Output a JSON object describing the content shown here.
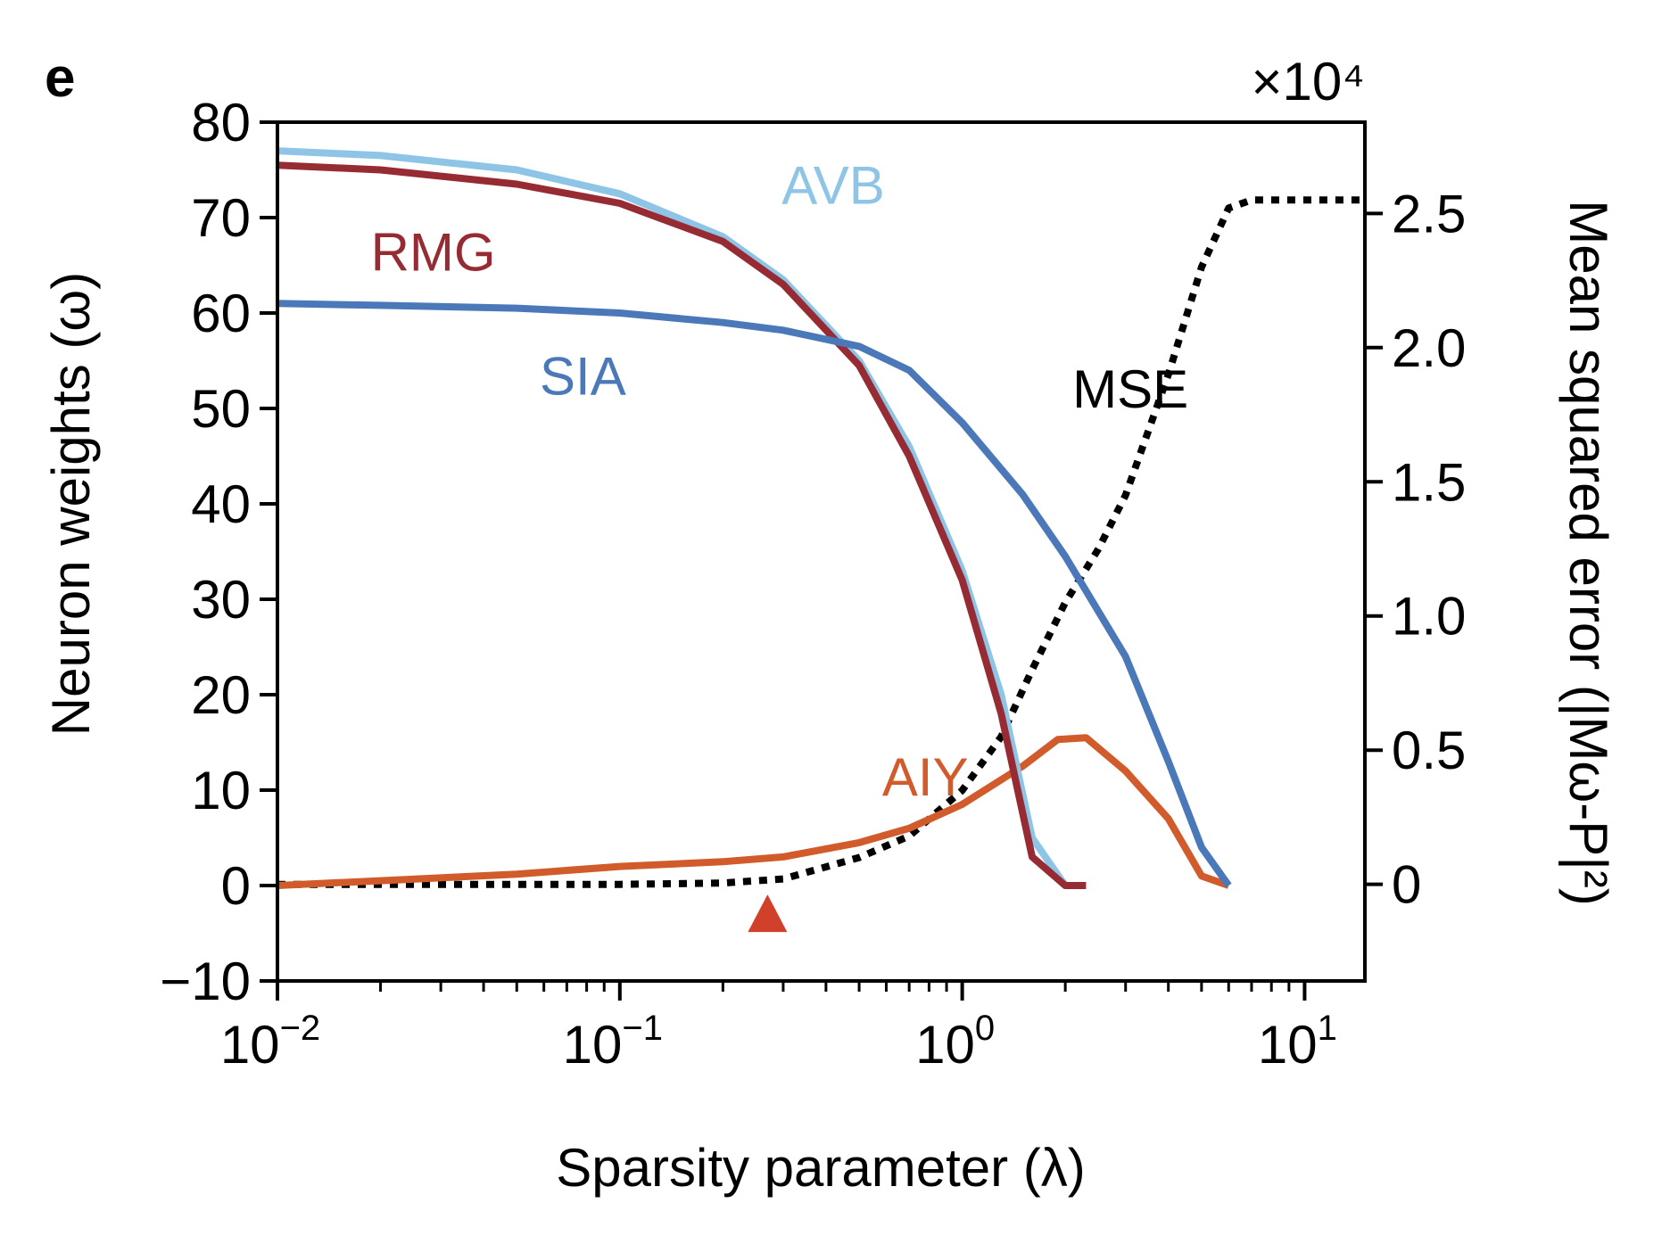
{
  "panel_label": "e",
  "chart_data": {
    "type": "line",
    "title": "",
    "xlabel": "Sparsity parameter (λ)",
    "ylabel": "Neuron weights (ω)",
    "ylabel_right": "Mean squared error (|Mω-P|²)",
    "xscale": "log",
    "xlim": [
      0.01,
      15
    ],
    "ylim": [
      -10,
      80
    ],
    "ylim_right": [
      -0.36,
      2.84
    ],
    "right_axis_multiplier": "×10⁴",
    "x_ticks": [
      {
        "value": 0.01,
        "base": "10",
        "exp": "−2"
      },
      {
        "value": 0.1,
        "base": "10",
        "exp": "−1"
      },
      {
        "value": 1,
        "base": "10",
        "exp": "0"
      },
      {
        "value": 10,
        "base": "10",
        "exp": "1"
      }
    ],
    "y_ticks": [
      {
        "value": -10,
        "label": "−10"
      },
      {
        "value": 0,
        "label": "0"
      },
      {
        "value": 10,
        "label": "10"
      },
      {
        "value": 20,
        "label": "20"
      },
      {
        "value": 30,
        "label": "30"
      },
      {
        "value": 40,
        "label": "40"
      },
      {
        "value": 50,
        "label": "50"
      },
      {
        "value": 60,
        "label": "60"
      },
      {
        "value": 70,
        "label": "70"
      },
      {
        "value": 80,
        "label": "80"
      }
    ],
    "y_ticks_right": [
      {
        "value": 0,
        "label": "0"
      },
      {
        "value": 0.5,
        "label": "0.5"
      },
      {
        "value": 1.0,
        "label": "1.0"
      },
      {
        "value": 1.5,
        "label": "1.5"
      },
      {
        "value": 2.0,
        "label": "2.0"
      },
      {
        "value": 2.5,
        "label": "2.5"
      }
    ],
    "marker": {
      "x": 0.27,
      "y": -3,
      "shape": "triangle",
      "color": "#d0402a"
    },
    "grid": false,
    "legend": "inline labels",
    "series": [
      {
        "name": "AVB",
        "axis": "left",
        "color": "#8ec4e6",
        "style": "solid",
        "label_at": [
          0.42,
          73.5
        ],
        "x": [
          0.01,
          0.02,
          0.05,
          0.1,
          0.2,
          0.3,
          0.5,
          0.7,
          1.0,
          1.3,
          1.6,
          2.0,
          2.3
        ],
        "y": [
          77,
          76.5,
          75,
          72.5,
          68,
          63.5,
          55,
          46,
          33,
          20,
          5,
          -5,
          -10
        ]
      },
      {
        "name": "RMG",
        "axis": "left",
        "color": "#962b33",
        "style": "solid",
        "label_at": [
          0.0285,
          66.5
        ],
        "x": [
          0.01,
          0.02,
          0.05,
          0.1,
          0.2,
          0.3,
          0.5,
          0.7,
          1.0,
          1.3,
          1.6,
          2.0,
          2.3
        ],
        "y": [
          75.5,
          75,
          73.5,
          71.5,
          67.5,
          63,
          54.5,
          45,
          32,
          18,
          3,
          -6,
          -10
        ]
      },
      {
        "name": "SIA",
        "axis": "left",
        "color": "#4a78b8",
        "style": "solid",
        "label_at": [
          0.078,
          53.5
        ],
        "x": [
          0.01,
          0.02,
          0.05,
          0.1,
          0.2,
          0.3,
          0.5,
          0.7,
          1.0,
          1.5,
          2.0,
          3.0,
          4.0,
          5.0,
          6.0
        ],
        "y": [
          61,
          60.8,
          60.5,
          60,
          59,
          58.2,
          56.5,
          54,
          48.5,
          41,
          34.5,
          24,
          13,
          4,
          0
        ]
      },
      {
        "name": "AIY",
        "axis": "left",
        "color": "#d15b2a",
        "style": "solid",
        "label_at": [
          0.78,
          11.5
        ],
        "x": [
          0.01,
          0.02,
          0.05,
          0.1,
          0.2,
          0.3,
          0.5,
          0.7,
          1.0,
          1.5,
          1.9,
          2.3,
          3.0,
          4.0,
          5.0,
          6.0
        ],
        "y": [
          0,
          0.5,
          1.2,
          2,
          2.5,
          3,
          4.5,
          6,
          8.5,
          12.5,
          15.3,
          15.5,
          12,
          7,
          1,
          0
        ]
      },
      {
        "name": "MSE",
        "axis": "right",
        "color": "#000000",
        "style": "dotted",
        "label_at": [
          3.1,
          1.85
        ],
        "x": [
          0.01,
          0.05,
          0.1,
          0.2,
          0.3,
          0.5,
          0.7,
          1.0,
          1.3,
          1.6,
          2.0,
          2.5,
          3.0,
          4.0,
          5.0,
          6.0,
          7.0,
          10.0,
          15.0
        ],
        "y": [
          0,
          0,
          0,
          0.005,
          0.02,
          0.1,
          0.18,
          0.35,
          0.55,
          0.8,
          1.05,
          1.25,
          1.45,
          1.9,
          2.3,
          2.52,
          2.55,
          2.55,
          2.55
        ]
      }
    ]
  }
}
